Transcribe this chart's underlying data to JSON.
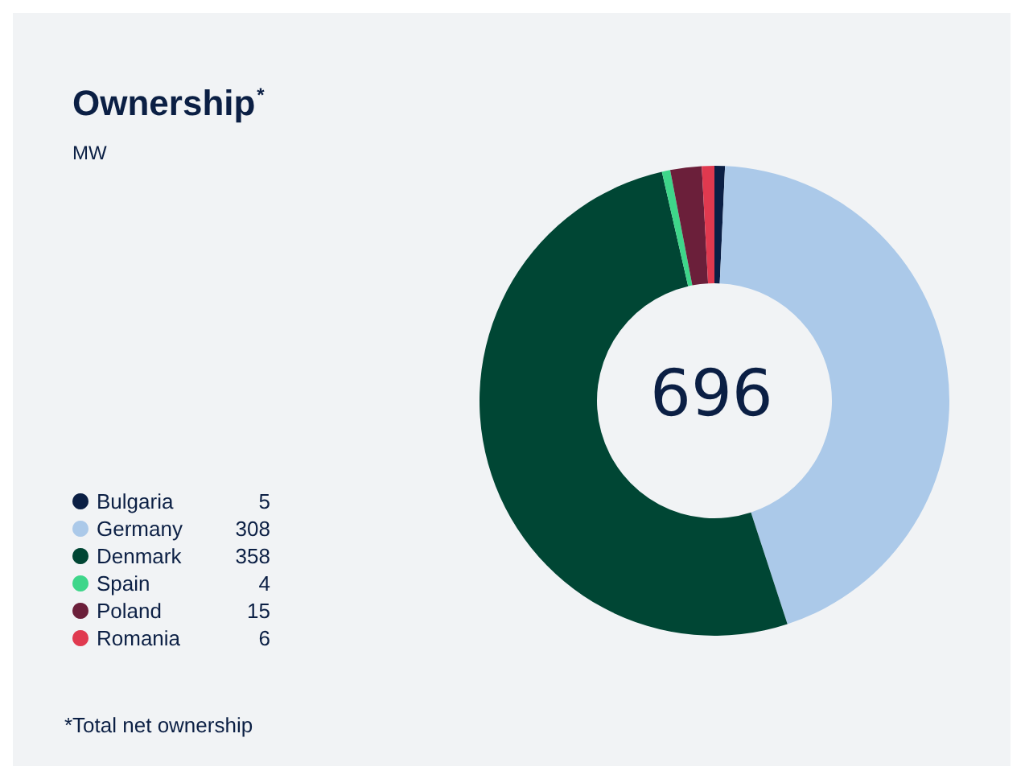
{
  "chart_data": {
    "type": "donut",
    "title": "Ownership$^{*}$",
    "subtitle": "MW",
    "categories": [
      "Bulgaria",
      "Germany",
      "Denmark",
      "Spain",
      "Poland",
      "Romania"
    ],
    "values": [
      5,
      308,
      358,
      4,
      15,
      6
    ],
    "colors": [
      "#0b1f44",
      "#abc9e9",
      "#004634",
      "#3ed68a",
      "#6b1f3a",
      "#e0394f"
    ],
    "annotations": [
      "696",
      "*Total net ownership"
    ],
    "data_labels": true,
    "legend": "bottom left"
  }
}
